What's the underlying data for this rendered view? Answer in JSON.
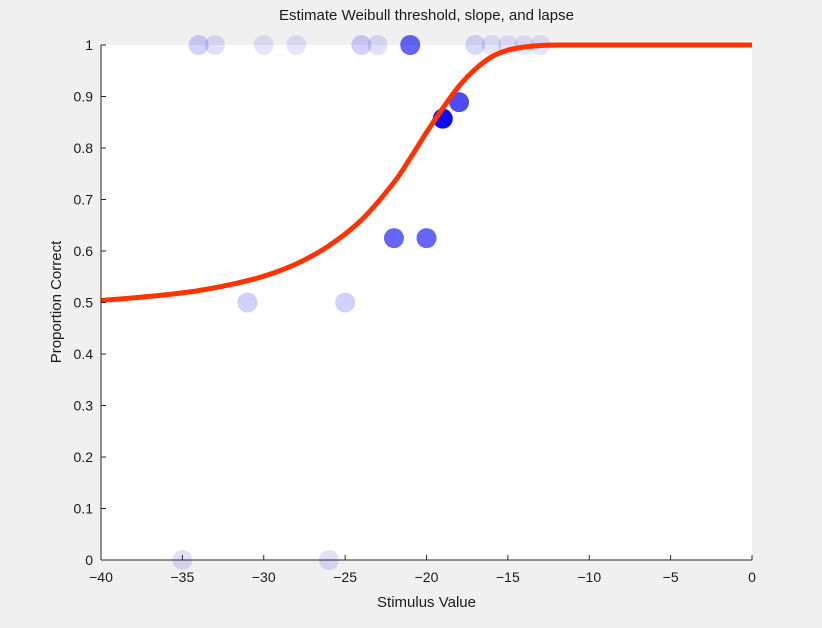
{
  "chart_data": {
    "type": "scatter",
    "title": "Estimate Weibull threshold, slope, and lapse",
    "xlabel": "Stimulus Value",
    "ylabel": "Proportion Correct",
    "xlim": [
      -40,
      0
    ],
    "ylim": [
      0,
      1
    ],
    "xticks": [
      -40,
      -35,
      -30,
      -25,
      -20,
      -15,
      -10,
      -5,
      0
    ],
    "yticks": [
      0,
      0.1,
      0.2,
      0.3,
      0.4,
      0.5,
      0.6,
      0.7,
      0.8,
      0.9,
      1
    ],
    "grid": false,
    "points": [
      {
        "x": -35,
        "y": 0,
        "opacity": 0.12
      },
      {
        "x": -26,
        "y": 0,
        "opacity": 0.12
      },
      {
        "x": -31,
        "y": 0.5,
        "opacity": 0.18
      },
      {
        "x": -25,
        "y": 0.5,
        "opacity": 0.18
      },
      {
        "x": -22,
        "y": 0.625,
        "opacity": 0.6
      },
      {
        "x": -20,
        "y": 0.625,
        "opacity": 0.6
      },
      {
        "x": -19,
        "y": 0.857,
        "opacity": 0.95
      },
      {
        "x": -18,
        "y": 0.889,
        "opacity": 0.7
      },
      {
        "x": -34,
        "y": 1,
        "opacity": 0.18
      },
      {
        "x": -33,
        "y": 1,
        "opacity": 0.12
      },
      {
        "x": -30,
        "y": 1,
        "opacity": 0.1
      },
      {
        "x": -28,
        "y": 1,
        "opacity": 0.1
      },
      {
        "x": -24,
        "y": 1,
        "opacity": 0.18
      },
      {
        "x": -23,
        "y": 1,
        "opacity": 0.12
      },
      {
        "x": -21,
        "y": 1,
        "opacity": 0.6
      },
      {
        "x": -17,
        "y": 1,
        "opacity": 0.15
      },
      {
        "x": -16,
        "y": 1,
        "opacity": 0.1
      },
      {
        "x": -15,
        "y": 1,
        "opacity": 0.1
      },
      {
        "x": -14,
        "y": 1,
        "opacity": 0.1
      },
      {
        "x": -13,
        "y": 1,
        "opacity": 0.1
      }
    ],
    "fit_curve": {
      "x": [
        -40,
        -38,
        -36,
        -34,
        -32,
        -30,
        -28,
        -26,
        -24,
        -22,
        -21,
        -20,
        -19,
        -18,
        -17,
        -16,
        -15,
        -14,
        -13,
        -12,
        -11,
        -10,
        -5,
        0
      ],
      "y": [
        0.504,
        0.509,
        0.515,
        0.523,
        0.535,
        0.551,
        0.575,
        0.61,
        0.66,
        0.733,
        0.78,
        0.83,
        0.877,
        0.92,
        0.953,
        0.977,
        0.99,
        0.996,
        0.999,
        1,
        1,
        1,
        1,
        1
      ]
    },
    "colors": {
      "points": "#0000ee",
      "curve": "#ff3300"
    }
  }
}
